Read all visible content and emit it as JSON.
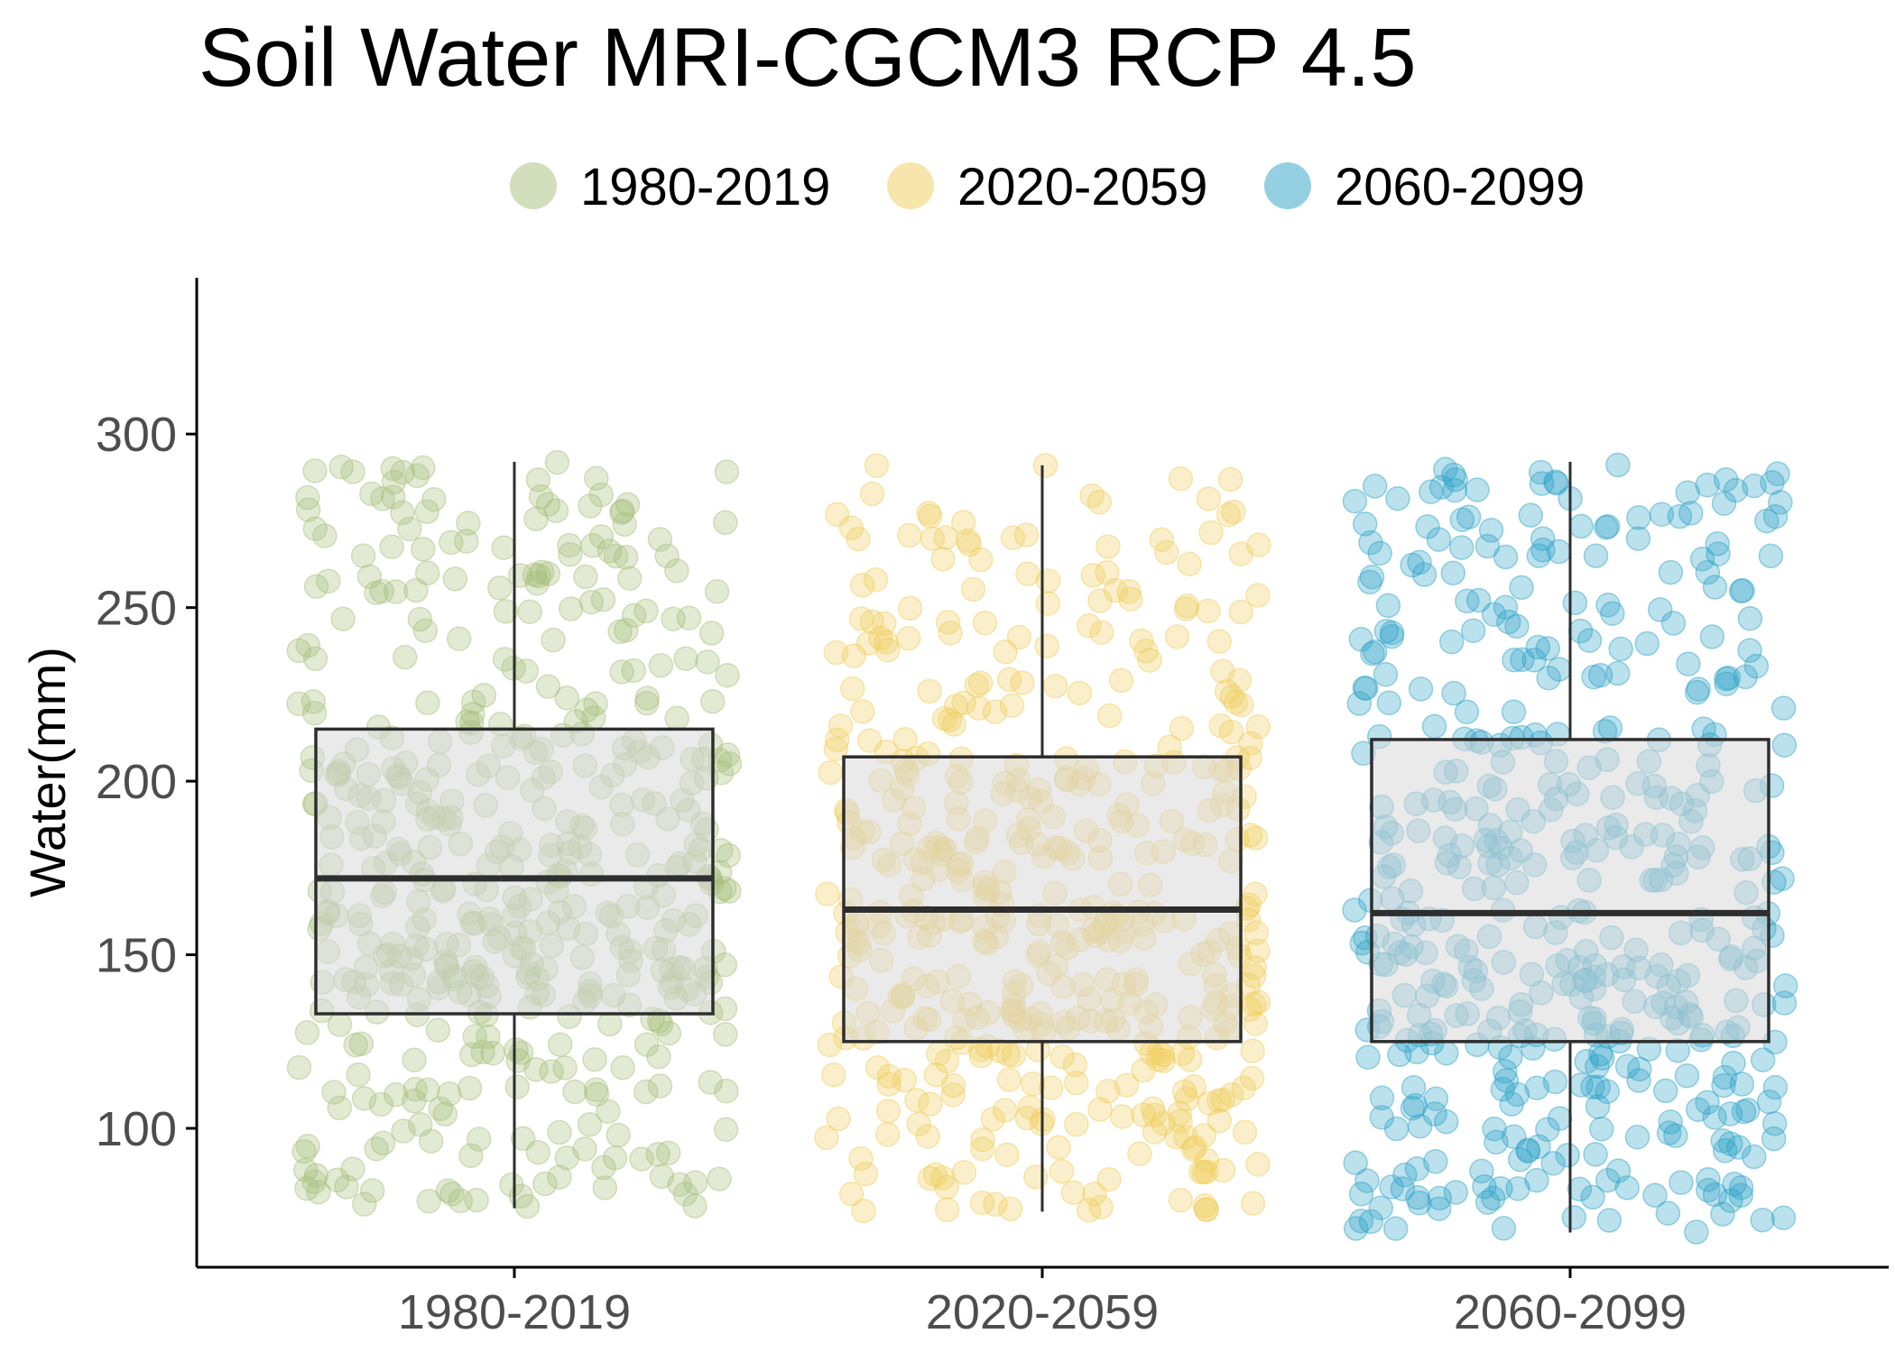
{
  "chart_data": {
    "type": "boxplot",
    "title": "Soil Water MRI-CGCM3 RCP 4.5",
    "ylabel": "Water(mm)",
    "xlabel": "",
    "ylim": [
      60,
      345
    ],
    "yticks": [
      100,
      150,
      200,
      250,
      300
    ],
    "ytick_labels": [
      "100",
      "150",
      "200",
      "250",
      "300"
    ],
    "legend_position": "top",
    "grid": false,
    "categories": [
      "1980-2019",
      "2020-2059",
      "2060-2099"
    ],
    "series": [
      {
        "name": "1980-2019",
        "color": "#A6BE7A",
        "whisker_low": 77,
        "q1": 133,
        "median": 172,
        "q3": 215,
        "whisker_high": 292,
        "n_points": 480,
        "point_min": 77,
        "point_max": 292
      },
      {
        "name": "2020-2059",
        "color": "#F0CD5A",
        "whisker_low": 76,
        "q1": 125,
        "median": 163,
        "q3": 207,
        "whisker_high": 291,
        "n_points": 480,
        "point_min": 76,
        "point_max": 291
      },
      {
        "name": "2060-2099",
        "color": "#2BA2C6",
        "whisker_low": 70,
        "q1": 125,
        "median": 162,
        "q3": 212,
        "whisker_high": 292,
        "n_points": 480,
        "point_min": 70,
        "point_max": 292
      }
    ],
    "box_fill": "#D9D9D9",
    "box_stroke": "#2E2E2E"
  }
}
